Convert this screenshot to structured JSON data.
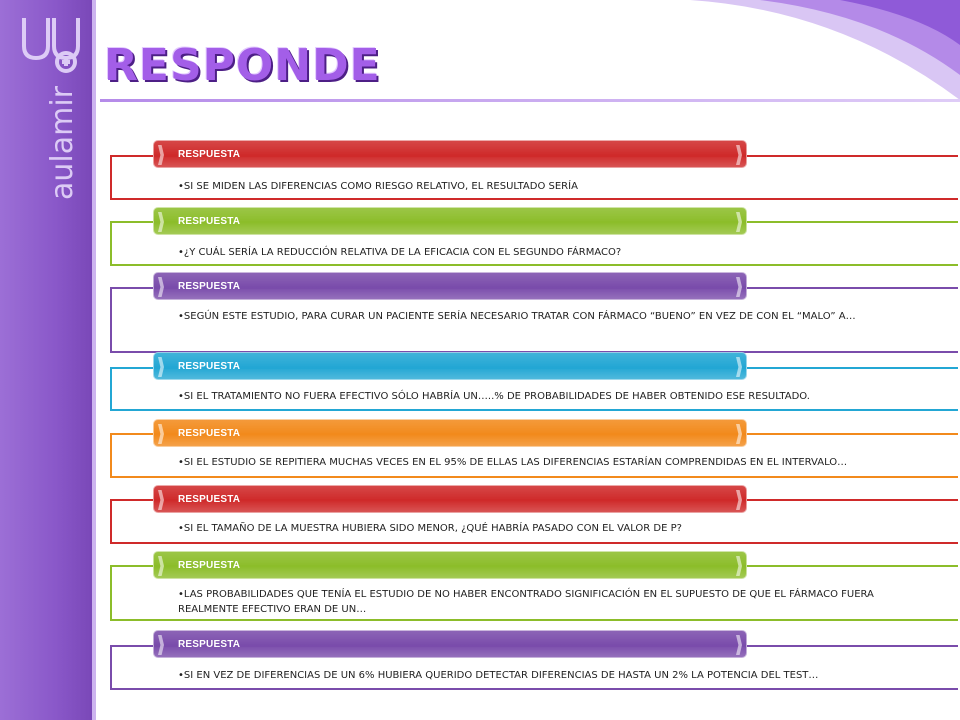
{
  "brand": {
    "name": "aulamir"
  },
  "title": "RESPONDE",
  "answer_label": "RESPUESTA",
  "colors": {
    "sidebar": "#8a58c9",
    "red": "#cf2a2a",
    "green": "#8cbd2a",
    "purple": "#7a4cab",
    "blue": "#23a7d4",
    "orange": "#f28a1c",
    "title": "#a35ee8"
  },
  "items": [
    {
      "color": "red",
      "text": "•SI SE MIDEN LAS DIFERENCIAS COMO RIESGO RELATIVO, EL RESULTADO SERÍA"
    },
    {
      "color": "green",
      "text": "•¿Y CUÁL SERÍA LA REDUCCIÓN RELATIVA DE LA EFICACIA CON EL SEGUNDO FÁRMACO?"
    },
    {
      "color": "purple",
      "text": "•SEGÚN ESTE ESTUDIO, PARA CURAR UN PACIENTE SERÍA NECESARIO TRATAR CON FÁRMACO “BUENO” EN VEZ DE CON EL “MALO” A…"
    },
    {
      "color": "blue",
      "text": "•SI EL TRATAMIENTO NO FUERA EFECTIVO SÓLO HABRÍA UN…..% DE PROBABILIDADES DE HABER OBTENIDO ESE RESULTADO."
    },
    {
      "color": "orange",
      "text": "•SI EL ESTUDIO SE REPITIERA MUCHAS VECES EN EL 95% DE ELLAS LAS DIFERENCIAS ESTARÍAN COMPRENDIDAS EN EL INTERVALO…"
    },
    {
      "color": "red",
      "text": "•SI EL TAMAÑO DE LA MUESTRA HUBIERA SIDO MENOR, ¿QUÉ HABRÍA PASADO CON EL VALOR DE P?"
    },
    {
      "color": "green",
      "text": "•LAS PROBABILIDADES QUE TENÍA EL ESTUDIO DE NO HABER ENCONTRADO SIGNIFICACIÓN EN EL SUPUESTO DE QUE EL FÁRMACO FUERA REALMENTE EFECTIVO ERAN DE UN…"
    },
    {
      "color": "purple",
      "text": "•SI EN VEZ DE DIFERENCIAS DE UN 6% HUBIERA QUERIDO DETECTAR DIFERENCIAS DE HASTA UN 2% LA POTENCIA DEL TEST…"
    }
  ]
}
